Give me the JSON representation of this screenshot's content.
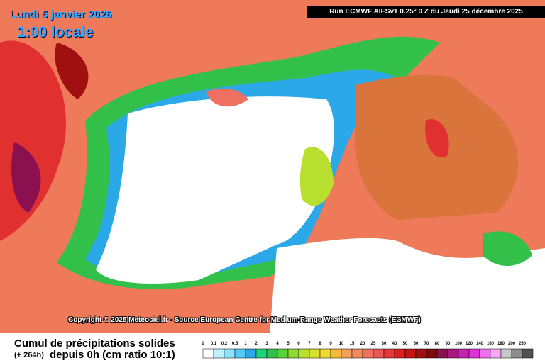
{
  "header": {
    "date": "Lundi 5 janvier 2026",
    "hour": "1:00 locale",
    "run": "Run ECMWF AIFSv1 0.25° 0 Z du Jeudi 25 décembre 2025"
  },
  "copyright": "Copyright © 2025 Meteociel.fr - Source European Centre for Medium-Range Weather Forecasts (ECMWF)",
  "legend": {
    "title": "Cumul de précipitations solides",
    "hours": "(+ 264h)",
    "unit": "depuis 0h (cm ratio 10:1)",
    "items": [
      {
        "label": "0",
        "color": "#ffffff"
      },
      {
        "label": "0.1",
        "color": "#bff0ff"
      },
      {
        "label": "0.2",
        "color": "#8de4fb"
      },
      {
        "label": "0.5",
        "color": "#58c9f5"
      },
      {
        "label": "1",
        "color": "#2aa8e8"
      },
      {
        "label": "2",
        "color": "#1ed27a"
      },
      {
        "label": "3",
        "color": "#33c04a"
      },
      {
        "label": "4",
        "color": "#5ad13a"
      },
      {
        "label": "5",
        "color": "#8fd932"
      },
      {
        "label": "6",
        "color": "#b9e02e"
      },
      {
        "label": "7",
        "color": "#d8e12c"
      },
      {
        "label": "8",
        "color": "#f0d830"
      },
      {
        "label": "9",
        "color": "#f5b93a"
      },
      {
        "label": "10",
        "color": "#f4a05c"
      },
      {
        "label": "15",
        "color": "#f08a5a"
      },
      {
        "label": "20",
        "color": "#ee7060"
      },
      {
        "label": "25",
        "color": "#ea5555"
      },
      {
        "label": "30",
        "color": "#e53838"
      },
      {
        "label": "40",
        "color": "#e01e1e"
      },
      {
        "label": "50",
        "color": "#c21515"
      },
      {
        "label": "60",
        "color": "#a01010"
      },
      {
        "label": "70",
        "color": "#7d0a0a"
      },
      {
        "label": "80",
        "color": "#8a1050"
      },
      {
        "label": "90",
        "color": "#a81880"
      },
      {
        "label": "100",
        "color": "#c822b0"
      },
      {
        "label": "120",
        "color": "#e030d8"
      },
      {
        "label": "140",
        "color": "#f070f0"
      },
      {
        "label": "160",
        "color": "#f5a8f5"
      },
      {
        "label": "180",
        "color": "#c8c8c8"
      },
      {
        "label": "200",
        "color": "#8c8c8c"
      },
      {
        "label": "250",
        "color": "#505050"
      }
    ]
  }
}
